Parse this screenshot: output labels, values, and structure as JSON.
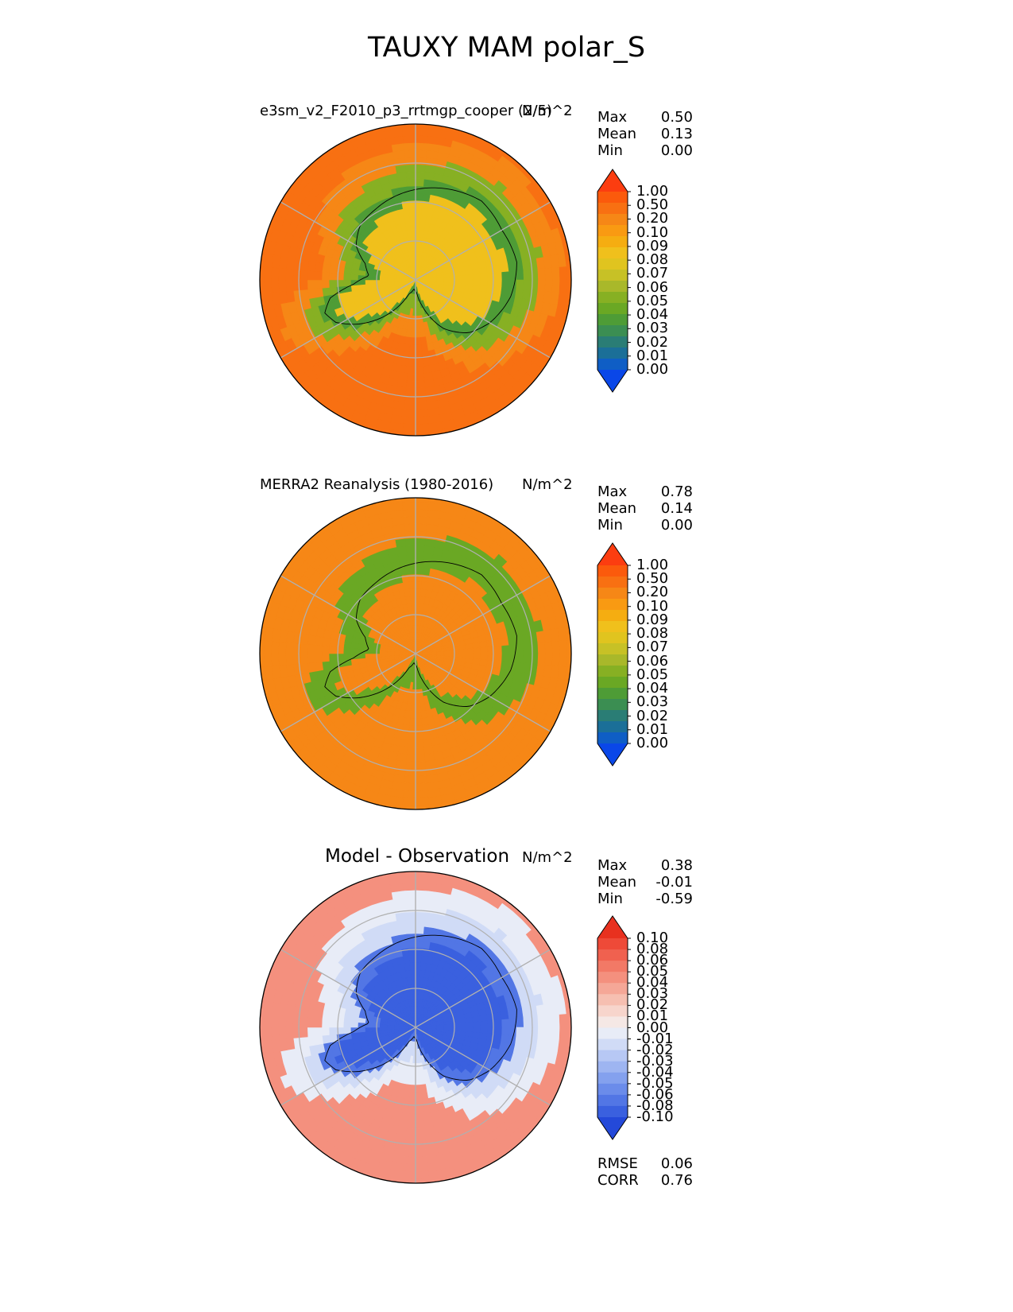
{
  "title": "TAUXY MAM polar_S",
  "chart_data": [
    {
      "type": "heatmap",
      "projection": "south-polar-stereographic",
      "title": "e3sm_v2_F2010_p3_rrtmgp_cooper (2/5)",
      "units": "N/m^2",
      "stats": [
        {
          "label": "Max",
          "value": "0.50"
        },
        {
          "label": "Mean",
          "value": "0.13"
        },
        {
          "label": "Min",
          "value": "0.00"
        }
      ],
      "colorbar": {
        "ticks": [
          "1.00",
          "0.50",
          "0.20",
          "0.10",
          "0.09",
          "0.08",
          "0.07",
          "0.06",
          "0.05",
          "0.04",
          "0.03",
          "0.02",
          "0.01",
          "0.00"
        ],
        "colors": [
          "#fc3d10",
          "#fb5a0c",
          "#f87012",
          "#f68716",
          "#f99a12",
          "#f5ad11",
          "#f0c01c",
          "#e0c41f",
          "#c7c126",
          "#a9b82a",
          "#87b023",
          "#6aa824",
          "#4e9c36",
          "#3b8e52",
          "#2a7d75",
          "#1b6f98",
          "#0f5ec5",
          "#0a47e8"
        ],
        "extend": "both"
      },
      "field": {
        "ocean_far": 0.22,
        "ocean_near": 0.12,
        "coast": 0.035,
        "interior": 0.08,
        "over_min": 0.02
      }
    },
    {
      "type": "heatmap",
      "projection": "south-polar-stereographic",
      "title": "MERRA2 Reanalysis (1980-2016)",
      "units": "N/m^2",
      "stats": [
        {
          "label": "Max",
          "value": "0.78"
        },
        {
          "label": "Mean",
          "value": "0.14"
        },
        {
          "label": "Min",
          "value": "0.00"
        }
      ],
      "colorbar": {
        "ticks": [
          "1.00",
          "0.50",
          "0.20",
          "0.10",
          "0.09",
          "0.08",
          "0.07",
          "0.06",
          "0.05",
          "0.04",
          "0.03",
          "0.02",
          "0.01",
          "0.00"
        ],
        "colors": [
          "#fc3d10",
          "#fb5a0c",
          "#f87012",
          "#f68716",
          "#f99a12",
          "#f5ad11",
          "#f0c01c",
          "#e0c41f",
          "#c7c126",
          "#a9b82a",
          "#87b023",
          "#6aa824",
          "#4e9c36",
          "#3b8e52",
          "#2a7d75",
          "#1b6f98",
          "#0f5ec5",
          "#0a47e8"
        ],
        "extend": "both"
      },
      "field": {
        "ocean_far": 0.14,
        "ocean_near": 0.11,
        "coast": 0.03,
        "interior": 0.2,
        "over_min": 0.03
      }
    },
    {
      "type": "heatmap",
      "projection": "south-polar-stereographic",
      "title": "Model - Observation",
      "units": "N/m^2",
      "stats": [
        {
          "label": "Max",
          "value": "0.38"
        },
        {
          "label": "Mean",
          "value": "-0.01"
        },
        {
          "label": "Min",
          "value": "-0.59"
        }
      ],
      "colorbar": {
        "ticks": [
          "0.10",
          "0.08",
          "0.06",
          "0.05",
          "0.04",
          "0.03",
          "0.02",
          "0.01",
          "0.00",
          "-0.01",
          "-0.02",
          "-0.03",
          "-0.04",
          "-0.05",
          "-0.06",
          "-0.08",
          "-0.10"
        ],
        "colors": [
          "#e8311f",
          "#ee4a38",
          "#f0614f",
          "#f27966",
          "#f4907e",
          "#f5a797",
          "#f6bfb1",
          "#f7d5cc",
          "#f5e8e5",
          "#e8ecf7",
          "#d0dbf6",
          "#b7c8f4",
          "#9eb5f1",
          "#84a1ee",
          "#6b8cea",
          "#5276e5",
          "#3a60df",
          "#2449d9"
        ],
        "extend": "both"
      },
      "field": {
        "ocean_far": 0.05,
        "ocean_near": 0.0,
        "coast": -0.01,
        "interior": -0.09,
        "over_min": -0.06
      },
      "metrics": [
        {
          "label": "RMSE",
          "value": "0.06"
        },
        {
          "label": "CORR",
          "value": "0.76"
        }
      ]
    }
  ]
}
